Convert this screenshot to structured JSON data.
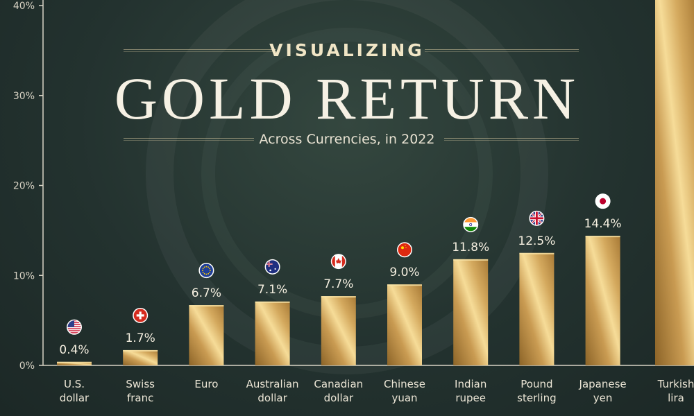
{
  "header": {
    "kicker": "VISUALIZING",
    "title": "GOLD RETURN",
    "subtitle": "Across Currencies, in 2022"
  },
  "colors": {
    "gold_dark": "#9a6e2c",
    "gold_light": "#f3d48a",
    "background": "#23322f",
    "axis_text": "#d8d3c4"
  },
  "chart_data": {
    "type": "bar",
    "categories": [
      [
        "U.S.",
        "dollar"
      ],
      [
        "Swiss",
        "franc"
      ],
      [
        "Euro"
      ],
      [
        "Australian",
        "dollar"
      ],
      [
        "Canadian",
        "dollar"
      ],
      [
        "Chinese",
        "yuan"
      ],
      [
        "Indian",
        "rupee"
      ],
      [
        "Pound",
        "sterling"
      ],
      [
        "Japanese",
        "yen"
      ],
      [
        "Turkish",
        "lira"
      ]
    ],
    "values": [
      0.4,
      1.7,
      6.7,
      7.1,
      7.7,
      9.0,
      11.8,
      12.5,
      14.4,
      41.0
    ],
    "data_labels": [
      "0.4%",
      "1.7%",
      "6.7%",
      "7.1%",
      "7.7%",
      "9.0%",
      "11.8%",
      "12.5%",
      "14.4%",
      ""
    ],
    "flag_icons": [
      "us-flag-icon",
      "swiss-flag-icon",
      "eu-flag-icon",
      "australia-flag-icon",
      "canada-flag-icon",
      "china-flag-icon",
      "india-flag-icon",
      "uk-flag-icon",
      "japan-flag-icon",
      ""
    ],
    "yticks": [
      "0%",
      "10%",
      "20%",
      "30%",
      "40%"
    ],
    "ylim": [
      0,
      40
    ],
    "grid": false
  }
}
